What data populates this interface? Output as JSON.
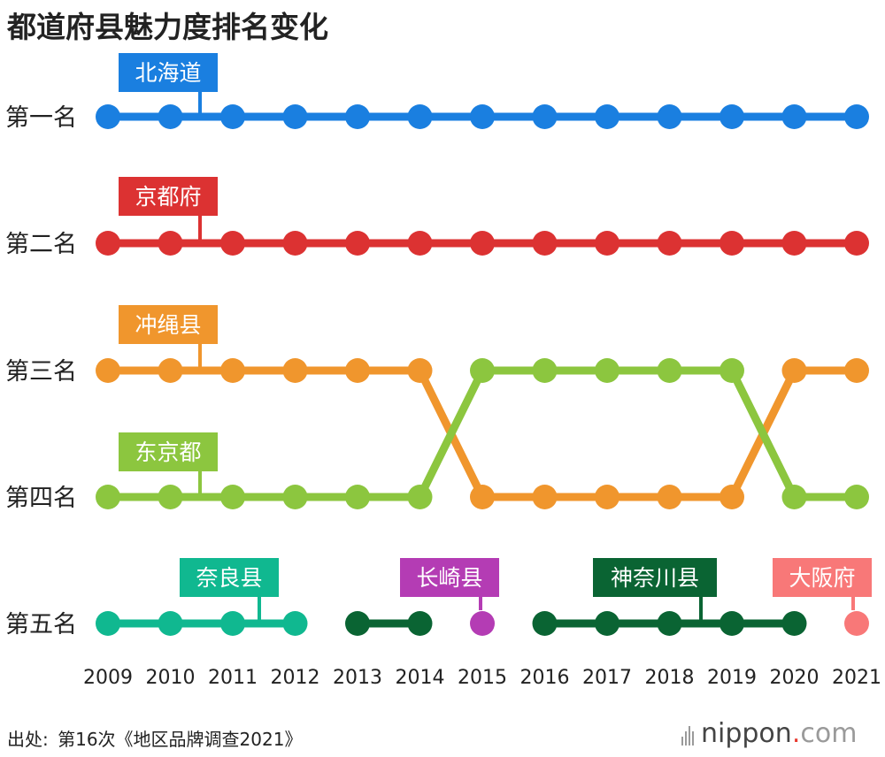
{
  "title": "都道府县魅力度排名变化",
  "source": {
    "label": "出处:",
    "text": "第16次《地区品牌调查2021》"
  },
  "logo": {
    "name": "nippon",
    "dot": ".",
    "tld": "com"
  },
  "chart_data": {
    "type": "line",
    "title": "都道府县魅力度排名变化",
    "x": [
      "2009",
      "2010",
      "2011",
      "2012",
      "2013",
      "2014",
      "2015",
      "2016",
      "2017",
      "2018",
      "2019",
      "2020",
      "2021"
    ],
    "rank_labels": [
      "第一名",
      "第二名",
      "第三名",
      "第四名",
      "第五名"
    ],
    "ylim": [
      1,
      5
    ],
    "series": [
      {
        "name": "北海道",
        "color": "#1a7fe0",
        "ranks": [
          1,
          1,
          1,
          1,
          1,
          1,
          1,
          1,
          1,
          1,
          1,
          1,
          1
        ]
      },
      {
        "name": "京都府",
        "color": "#dc3232",
        "ranks": [
          2,
          2,
          2,
          2,
          2,
          2,
          2,
          2,
          2,
          2,
          2,
          2,
          2
        ]
      },
      {
        "name": "冲绳县",
        "color": "#f0962d",
        "ranks": [
          3,
          3,
          3,
          3,
          3,
          3,
          4,
          4,
          4,
          4,
          4,
          3,
          3
        ]
      },
      {
        "name": "东京都",
        "color": "#8cc63f",
        "ranks": [
          4,
          4,
          4,
          4,
          4,
          4,
          3,
          3,
          3,
          3,
          3,
          4,
          4
        ]
      },
      {
        "name": "奈良县",
        "color": "#10b890",
        "ranks": [
          5,
          5,
          5,
          5,
          null,
          null,
          null,
          null,
          null,
          null,
          null,
          null,
          null
        ]
      },
      {
        "name": "神奈川县",
        "color": "#0a6433",
        "ranks": [
          null,
          null,
          null,
          null,
          5,
          5,
          null,
          5,
          5,
          5,
          5,
          5,
          null
        ]
      },
      {
        "name": "长崎县",
        "color": "#b43cb4",
        "ranks": [
          null,
          null,
          null,
          null,
          null,
          null,
          5,
          null,
          null,
          null,
          null,
          null,
          null
        ]
      },
      {
        "name": "大阪府",
        "color": "#f87878",
        "ranks": [
          null,
          null,
          null,
          null,
          null,
          null,
          null,
          null,
          null,
          null,
          null,
          null,
          5
        ]
      }
    ]
  }
}
